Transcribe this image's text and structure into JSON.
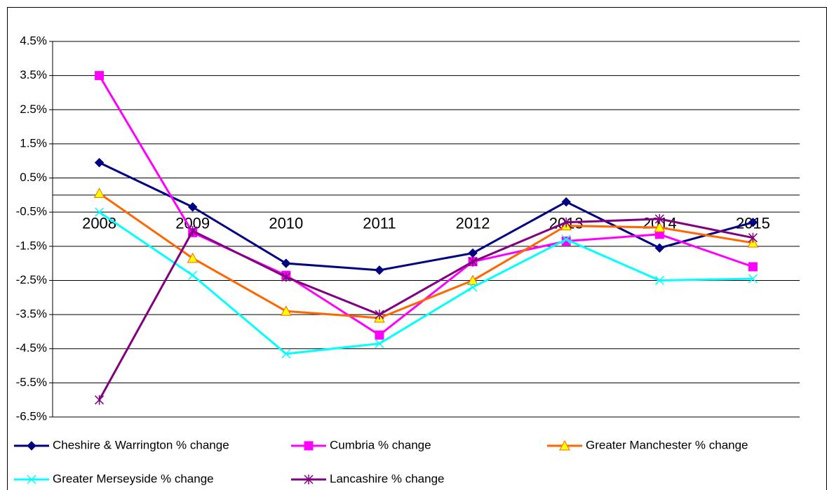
{
  "chart_data": {
    "type": "line",
    "categories": [
      "2008",
      "2009",
      "2010",
      "2011",
      "2012",
      "2013",
      "2014",
      "2015"
    ],
    "series": [
      {
        "name": "Cheshire & Warrington % change",
        "color": "#000080",
        "marker": "diamond",
        "marker_color": "#000080",
        "values": [
          0.95,
          -0.35,
          -2.0,
          -2.2,
          -1.7,
          -0.2,
          -1.55,
          -0.8
        ]
      },
      {
        "name": "Cumbria % change",
        "color": "#ff00ff",
        "marker": "square",
        "marker_color": "#ff00ff",
        "values": [
          3.5,
          -1.1,
          -2.35,
          -4.1,
          -1.95,
          -1.35,
          -1.15,
          -2.1
        ]
      },
      {
        "name": "Greater Manchester % change",
        "color": "#ff6600",
        "marker": "triangle",
        "marker_color": "#ffff00",
        "values": [
          0.05,
          -1.85,
          -3.4,
          -3.6,
          -2.5,
          -0.9,
          -0.95,
          -1.4
        ]
      },
      {
        "name": "Greater Merseyside % change",
        "color": "#00ffff",
        "marker": "x",
        "marker_color": "#00ffff",
        "values": [
          -0.5,
          -2.35,
          -4.65,
          -4.35,
          -2.7,
          -1.3,
          -2.5,
          -2.45
        ]
      },
      {
        "name": "Lancashire % change",
        "color": "#800080",
        "marker": "star",
        "marker_color": "#800080",
        "values": [
          -6.0,
          -1.05,
          -2.4,
          -3.5,
          -1.95,
          -0.8,
          -0.7,
          -1.25
        ]
      }
    ],
    "ylim": [
      -6.5,
      4.5
    ],
    "yticks": [
      {
        "value": 4.5,
        "label": "4.5%"
      },
      {
        "value": 3.5,
        "label": "3.5%"
      },
      {
        "value": 2.5,
        "label": "2.5%"
      },
      {
        "value": 1.5,
        "label": "1.5%"
      },
      {
        "value": 0.5,
        "label": "0.5%"
      },
      {
        "value": -0.5,
        "label": "-0.5%"
      },
      {
        "value": -1.5,
        "label": "-1.5%"
      },
      {
        "value": -2.5,
        "label": "-2.5%"
      },
      {
        "value": -3.5,
        "label": "-3.5%"
      },
      {
        "value": -4.5,
        "label": "-4.5%"
      },
      {
        "value": -5.5,
        "label": "-5.5%"
      },
      {
        "value": -6.5,
        "label": "-6.5%"
      }
    ],
    "grid": true,
    "legend": "bottom"
  }
}
